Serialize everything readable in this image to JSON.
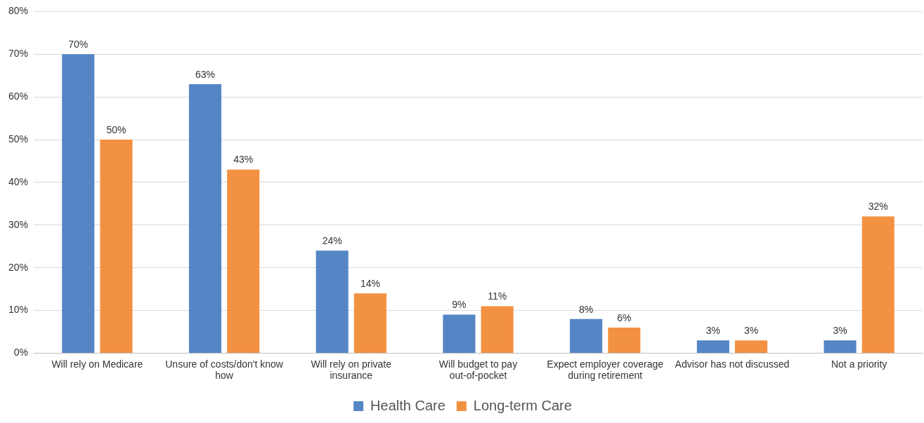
{
  "chart_data": {
    "type": "bar",
    "categories": [
      "Will rely on Medicare",
      "Unsure of costs/don't know how",
      "Will rely on private insurance",
      "Will budget to pay out-of-pocket",
      "Expect employer coverage during retirement",
      "Advisor has not discussed",
      "Not a priority"
    ],
    "series": [
      {
        "name": "Health Care",
        "color": "#5585c5",
        "values": [
          70,
          63,
          24,
          9,
          8,
          3,
          3
        ],
        "value_labels": [
          "70%",
          "63%",
          "24%",
          "9%",
          "8%",
          "3%",
          "3%"
        ]
      },
      {
        "name": "Long-term Care",
        "color": "#f39142",
        "values": [
          50,
          43,
          14,
          11,
          6,
          3,
          32
        ],
        "value_labels": [
          "50%",
          "43%",
          "14%",
          "11%",
          "6%",
          "3%",
          "32%"
        ]
      }
    ],
    "ylim": [
      0,
      80
    ],
    "yticks": [
      {
        "value": 0,
        "label": "0%"
      },
      {
        "value": 10,
        "label": "10%"
      },
      {
        "value": 20,
        "label": "20%"
      },
      {
        "value": 30,
        "label": "30%"
      },
      {
        "value": 40,
        "label": "40%"
      },
      {
        "value": 50,
        "label": "50%"
      },
      {
        "value": 60,
        "label": "60%"
      },
      {
        "value": 70,
        "label": "70%"
      },
      {
        "value": 80,
        "label": "80%"
      }
    ],
    "grid": "y",
    "legend": "bottom"
  }
}
